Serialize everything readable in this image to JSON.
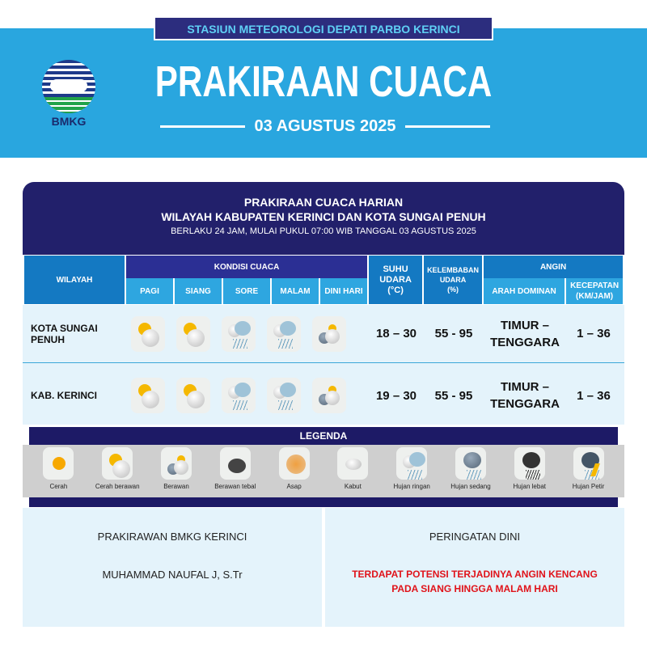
{
  "header": {
    "station": "STASIUN METEOROLOGI DEPATI PARBO KERINCI",
    "logo_text": "BMKG",
    "title": "PRAKIRAAN CUACA",
    "date": "03 AGUSTUS 2025",
    "colors": {
      "band": "#29a6df",
      "navy": "#22206b"
    }
  },
  "card": {
    "title": "PRAKIRAAN CUACA HARIAN",
    "subtitle": "WILAYAH KABUPATEN KERINCI DAN KOTA SUNGAI PENUH",
    "validity": "BERLAKU 24 JAM, MULAI PUKUL 07:00 WIB TANGGAL 03 AGUSTUS 2025"
  },
  "columns": {
    "wilayah": "WILAYAH",
    "kondisi": "KONDISI CUACA",
    "times": [
      "PAGI",
      "SIANG",
      "SORE",
      "MALAM",
      "DINI HARI"
    ],
    "suhu": "SUHU UDARA",
    "suhu_unit": "(°C)",
    "kelembaban": "KELEMBABAN UDARA",
    "kelembaban_unit": "(%)",
    "angin": "ANGIN",
    "arah": "ARAH DOMINAN",
    "kecepatan": "KECEPATAN (KM/JAM)"
  },
  "rows": [
    {
      "wilayah": "KOTA SUNGAI PENUH",
      "icons": [
        "cerah-berawan",
        "cerah-berawan",
        "hujan-ringan",
        "hujan-ringan",
        "berawan"
      ],
      "suhu": "18 – 30",
      "kelembaban": "55 - 95",
      "arah": "TIMUR – TENGGARA",
      "kecepatan": "1 – 36"
    },
    {
      "wilayah": "KAB. KERINCI",
      "icons": [
        "cerah-berawan",
        "cerah-berawan",
        "hujan-ringan",
        "hujan-ringan",
        "berawan"
      ],
      "suhu": "19 – 30",
      "kelembaban": "55 - 95",
      "arah": "TIMUR – TENGGARA",
      "kecepatan": "1 – 36"
    }
  ],
  "legend": {
    "title": "LEGENDA",
    "items": [
      {
        "label": "Cerah",
        "icon": "cerah"
      },
      {
        "label": "Cerah berawan",
        "icon": "cerah-berawan"
      },
      {
        "label": "Berawan",
        "icon": "berawan"
      },
      {
        "label": "Berawan tebal",
        "icon": "berawan-tebal"
      },
      {
        "label": "Asap",
        "icon": "asap"
      },
      {
        "label": "Kabut",
        "icon": "kabut"
      },
      {
        "label": "Hujan ringan",
        "icon": "hujan-ringan"
      },
      {
        "label": "Hujan sedang",
        "icon": "hujan-sedang"
      },
      {
        "label": "Hujan lebat",
        "icon": "hujan-lebat"
      },
      {
        "label": "Hujan Petir",
        "icon": "hujan-petir"
      }
    ]
  },
  "footer": {
    "forecaster_title": "PRAKIRAWAN BMKG KERINCI",
    "forecaster_name": "MUHAMMAD NAUFAL J, S.Tr",
    "warning_title": "PERINGATAN DINI",
    "warning_text": "TERDAPAT POTENSI TERJADINYA ANGIN KENCANG PADA SIANG HINGGA MALAM HARI",
    "warning_color": "#e0131a"
  }
}
